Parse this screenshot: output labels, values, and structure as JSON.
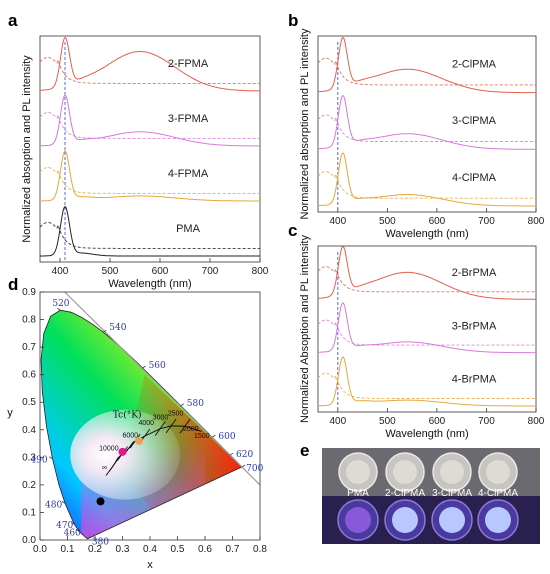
{
  "panels": [
    {
      "letter": "a",
      "xlabel": "Wavelength (nm)",
      "ylabel": "Normalized absoption and PL intensity",
      "xticks": [
        "400",
        "500",
        "600",
        "700",
        "800"
      ],
      "xlim": [
        360,
        800
      ],
      "marker_nm": 410,
      "show_xlabel": true,
      "series": [
        {
          "name": "2-FPMA",
          "color": "#e0604a"
        },
        {
          "name": "3-FPMA",
          "color": "#d878d8"
        },
        {
          "name": "4-FPMA",
          "color": "#e4a83a"
        },
        {
          "name": "PMA",
          "color": "#222222"
        }
      ]
    },
    {
      "letter": "b",
      "xlabel": "Wavelength (nm)",
      "ylabel": "Normalized absorption and PL intensity",
      "xticks": [
        "400",
        "500",
        "600",
        "700",
        "800"
      ],
      "xlim": [
        360,
        800
      ],
      "marker_nm": 400,
      "show_xlabel": true,
      "series": [
        {
          "name": "2-ClPMA",
          "color": "#e0604a"
        },
        {
          "name": "3-ClPMA",
          "color": "#d878d8"
        },
        {
          "name": "4-ClPMA",
          "color": "#e4a83a"
        }
      ]
    },
    {
      "letter": "c",
      "xlabel": "Wavelength (nm)",
      "ylabel": "Normalized Absoption and PL intensity",
      "xticks": [
        "400",
        "500",
        "600",
        "700",
        "800"
      ],
      "xlim": [
        360,
        800
      ],
      "marker_nm": 400,
      "show_xlabel": true,
      "series": [
        {
          "name": "2-BrPMA",
          "color": "#e0604a"
        },
        {
          "name": "3-BrPMA",
          "color": "#d878d8"
        },
        {
          "name": "4-BrPMA",
          "color": "#e4a83a"
        }
      ]
    }
  ],
  "cie": {
    "letter": "d",
    "xlabel": "x",
    "ylabel": "y",
    "xticks": [
      "0.0",
      "0.1",
      "0.2",
      "0.3",
      "0.4",
      "0.5",
      "0.6",
      "0.7",
      "0.8"
    ],
    "yticks": [
      "0.0",
      "0.1",
      "0.2",
      "0.3",
      "0.4",
      "0.5",
      "0.6",
      "0.7",
      "0.8",
      "0.9"
    ],
    "wavelength_labels": [
      "380",
      "460",
      "470",
      "480",
      "490",
      "520",
      "540",
      "560",
      "580",
      "600",
      "620",
      "700"
    ],
    "tc_label": "Tc(°K)",
    "cct_labels": [
      "10000",
      "6000",
      "4000",
      "3000",
      "2500",
      "2000",
      "1500",
      "∞"
    ],
    "points": [
      {
        "x": 0.22,
        "y": 0.14,
        "color": "#000000"
      },
      {
        "x": 0.3,
        "y": 0.32,
        "color": "#e01890"
      },
      {
        "x": 0.36,
        "y": 0.36,
        "color": "#f0a050"
      }
    ]
  },
  "photo": {
    "letter": "e",
    "labels": [
      "PMA",
      "2-ClPMA",
      "3-ClPMA",
      "4-ClPMA"
    ]
  }
}
